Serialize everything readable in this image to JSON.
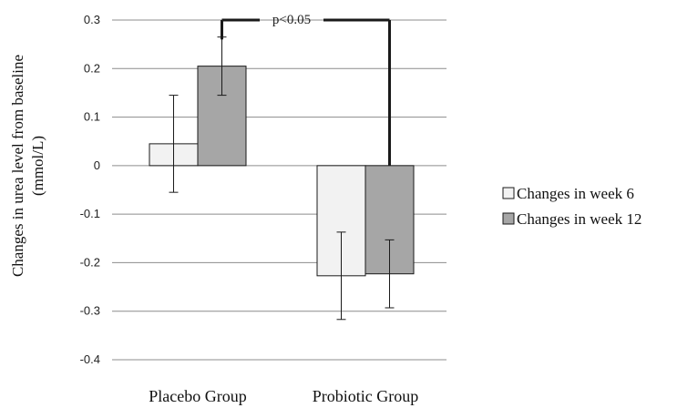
{
  "chart_data": {
    "type": "bar",
    "ylabel_lines": [
      "Changes in urea level from baseline",
      "(mmol/L)"
    ],
    "categories": [
      "Placebo Group",
      "Probiotic Group"
    ],
    "series": [
      {
        "name": "Changes in week 6",
        "values": [
          0.045,
          -0.227
        ],
        "errors": [
          0.1,
          0.09
        ],
        "color": "#f2f2f2"
      },
      {
        "name": "Changes in week 12",
        "values": [
          0.205,
          -0.223
        ],
        "errors": [
          0.06,
          0.07
        ],
        "color": "#a6a6a6"
      }
    ],
    "ylim": [
      -0.4,
      0.3
    ],
    "yticks": [
      "0.3",
      "0.2",
      "0.1",
      "0",
      "-0.1",
      "-0.2",
      "-0.3",
      "-0.4"
    ],
    "annotation": "p<0.05",
    "grid": true,
    "legend": "right"
  }
}
